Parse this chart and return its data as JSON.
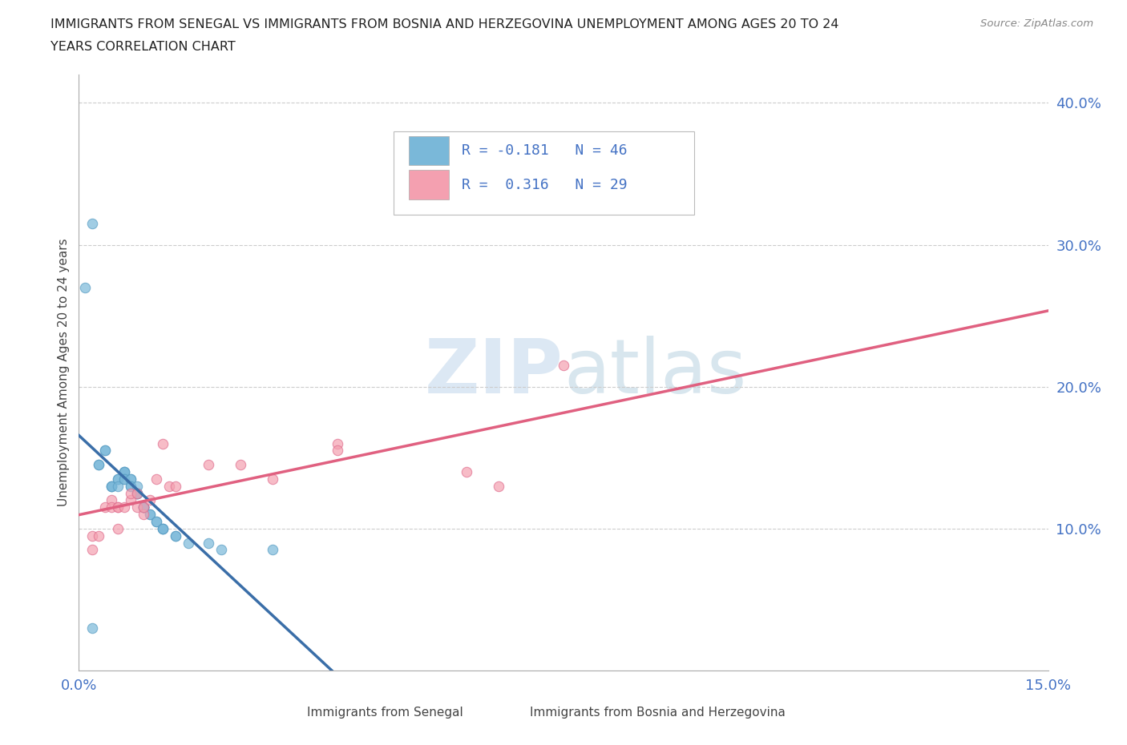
{
  "title_line1": "IMMIGRANTS FROM SENEGAL VS IMMIGRANTS FROM BOSNIA AND HERZEGOVINA UNEMPLOYMENT AMONG AGES 20 TO 24",
  "title_line2": "YEARS CORRELATION CHART",
  "source": "Source: ZipAtlas.com",
  "ylabel": "Unemployment Among Ages 20 to 24 years",
  "xlim": [
    0.0,
    0.15
  ],
  "ylim": [
    0.0,
    0.42
  ],
  "color_senegal": "#7ab8d9",
  "color_senegal_edge": "#5a9ec4",
  "color_bosnia": "#f4a0b0",
  "color_bosnia_edge": "#e07090",
  "color_line_senegal": "#3a6ea8",
  "color_line_senegal_dash": "#8ab8e0",
  "color_line_bosnia": "#e06080",
  "watermark_color": "#dce8f4",
  "senegal_x": [
    0.002,
    0.003,
    0.003,
    0.004,
    0.004,
    0.005,
    0.005,
    0.005,
    0.006,
    0.006,
    0.006,
    0.007,
    0.007,
    0.007,
    0.007,
    0.007,
    0.008,
    0.008,
    0.008,
    0.008,
    0.009,
    0.009,
    0.009,
    0.009,
    0.01,
    0.01,
    0.01,
    0.01,
    0.01,
    0.01,
    0.01,
    0.011,
    0.011,
    0.012,
    0.012,
    0.013,
    0.013,
    0.013,
    0.015,
    0.015,
    0.017,
    0.02,
    0.022,
    0.03,
    0.002,
    0.001
  ],
  "senegal_y": [
    0.03,
    0.145,
    0.145,
    0.155,
    0.155,
    0.13,
    0.13,
    0.13,
    0.135,
    0.135,
    0.13,
    0.14,
    0.14,
    0.14,
    0.135,
    0.135,
    0.135,
    0.135,
    0.13,
    0.13,
    0.13,
    0.125,
    0.125,
    0.125,
    0.115,
    0.115,
    0.115,
    0.115,
    0.115,
    0.115,
    0.115,
    0.11,
    0.11,
    0.105,
    0.105,
    0.1,
    0.1,
    0.1,
    0.095,
    0.095,
    0.09,
    0.09,
    0.085,
    0.085,
    0.315,
    0.27
  ],
  "bosnia_x": [
    0.002,
    0.002,
    0.003,
    0.004,
    0.005,
    0.005,
    0.006,
    0.006,
    0.006,
    0.007,
    0.008,
    0.008,
    0.009,
    0.009,
    0.01,
    0.01,
    0.011,
    0.012,
    0.013,
    0.014,
    0.015,
    0.02,
    0.025,
    0.03,
    0.04,
    0.04,
    0.06,
    0.065,
    0.075
  ],
  "bosnia_y": [
    0.095,
    0.085,
    0.095,
    0.115,
    0.12,
    0.115,
    0.115,
    0.115,
    0.1,
    0.115,
    0.12,
    0.125,
    0.125,
    0.115,
    0.11,
    0.115,
    0.12,
    0.135,
    0.16,
    0.13,
    0.13,
    0.145,
    0.145,
    0.135,
    0.16,
    0.155,
    0.14,
    0.13,
    0.215
  ],
  "legend_R_senegal": "R = -0.181",
  "legend_N_senegal": "N = 46",
  "legend_R_bosnia": "R =  0.316",
  "legend_N_bosnia": "N = 29",
  "legend_label_senegal": "Immigrants from Senegal",
  "legend_label_bosnia": "Immigrants from Bosnia and Herzegovina"
}
